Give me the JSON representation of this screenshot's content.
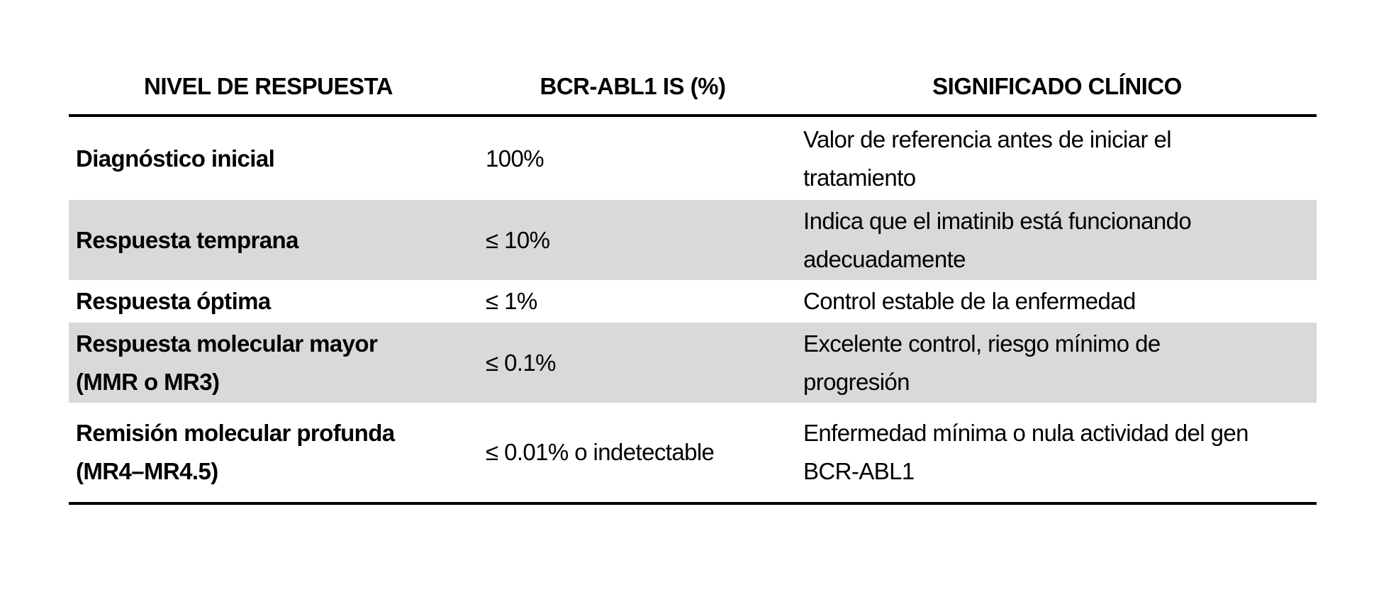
{
  "document": {
    "table": {
      "columns": [
        {
          "label": "NIVEL DE RESPUESTA"
        },
        {
          "label": "BCR-ABL1 IS (%)"
        },
        {
          "label": "SIGNIFICADO CLÍNICO"
        }
      ],
      "rows": [
        {
          "nivel": "Diagnóstico inicial",
          "bcr_abl1": "100%",
          "significado": "Valor de referencia antes de iniciar el\ntratamiento",
          "shaded": false
        },
        {
          "nivel": "Respuesta temprana",
          "bcr_abl1": "≤ 10%",
          "significado": "Indica que el imatinib está funcionando\nadecuadamente",
          "shaded": true
        },
        {
          "nivel": "Respuesta óptima",
          "bcr_abl1": "≤ 1%",
          "significado": "Control estable de la enfermedad",
          "shaded": false
        },
        {
          "nivel": "Respuesta molecular mayor\n(MMR o MR3)",
          "bcr_abl1": "≤ 0.1%",
          "significado": "Excelente control, riesgo mínimo de\nprogresión",
          "shaded": true
        },
        {
          "nivel": "Remisión molecular profunda\n(MR4–MR4.5)",
          "bcr_abl1": "≤ 0.01% o indetectable",
          "significado": "Enfermedad mínima o nula actividad del gen\nBCR-ABL1",
          "shaded": false
        }
      ],
      "style": {
        "shaded_row_color": "#d9d9d9",
        "rule_color": "#000000",
        "text_color": "#000000",
        "page_background": "#ffffff"
      }
    }
  }
}
